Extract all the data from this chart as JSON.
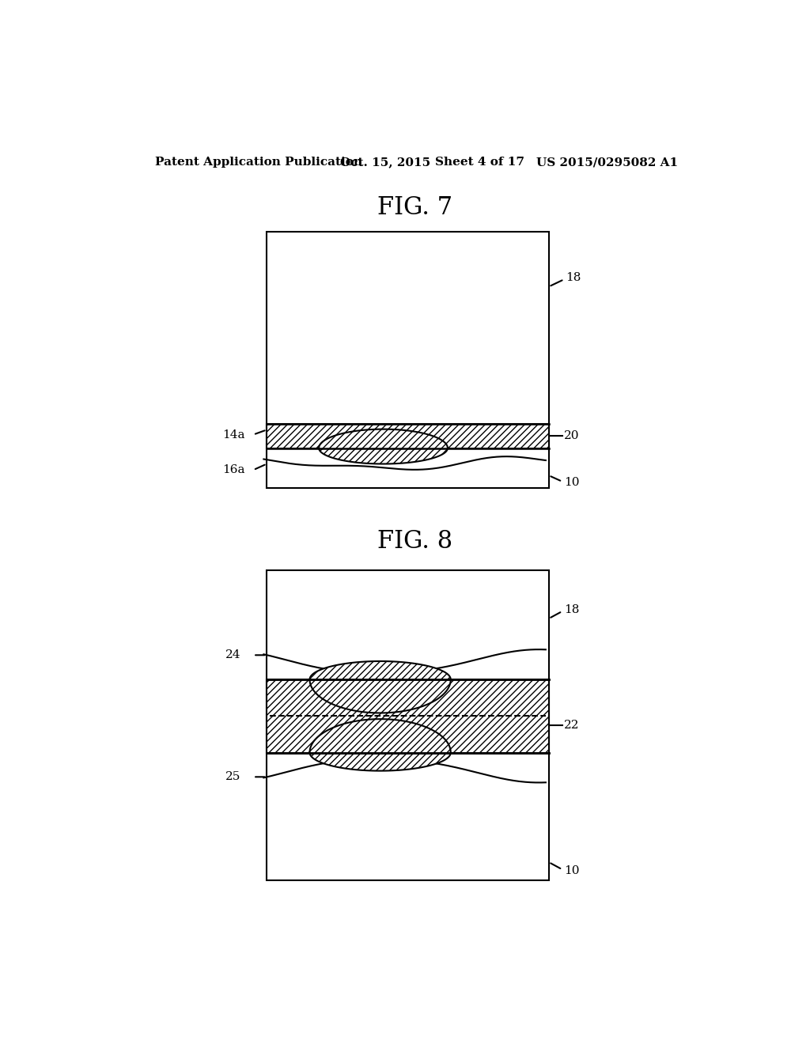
{
  "bg_color": "#ffffff",
  "header_text": "Patent Application Publication",
  "header_date": "Oct. 15, 2015",
  "header_sheet": "Sheet 4 of 17",
  "header_patent": "US 2015/0295082 A1",
  "fig7_title": "FIG. 7",
  "fig8_title": "FIG. 8",
  "line_color": "#000000"
}
